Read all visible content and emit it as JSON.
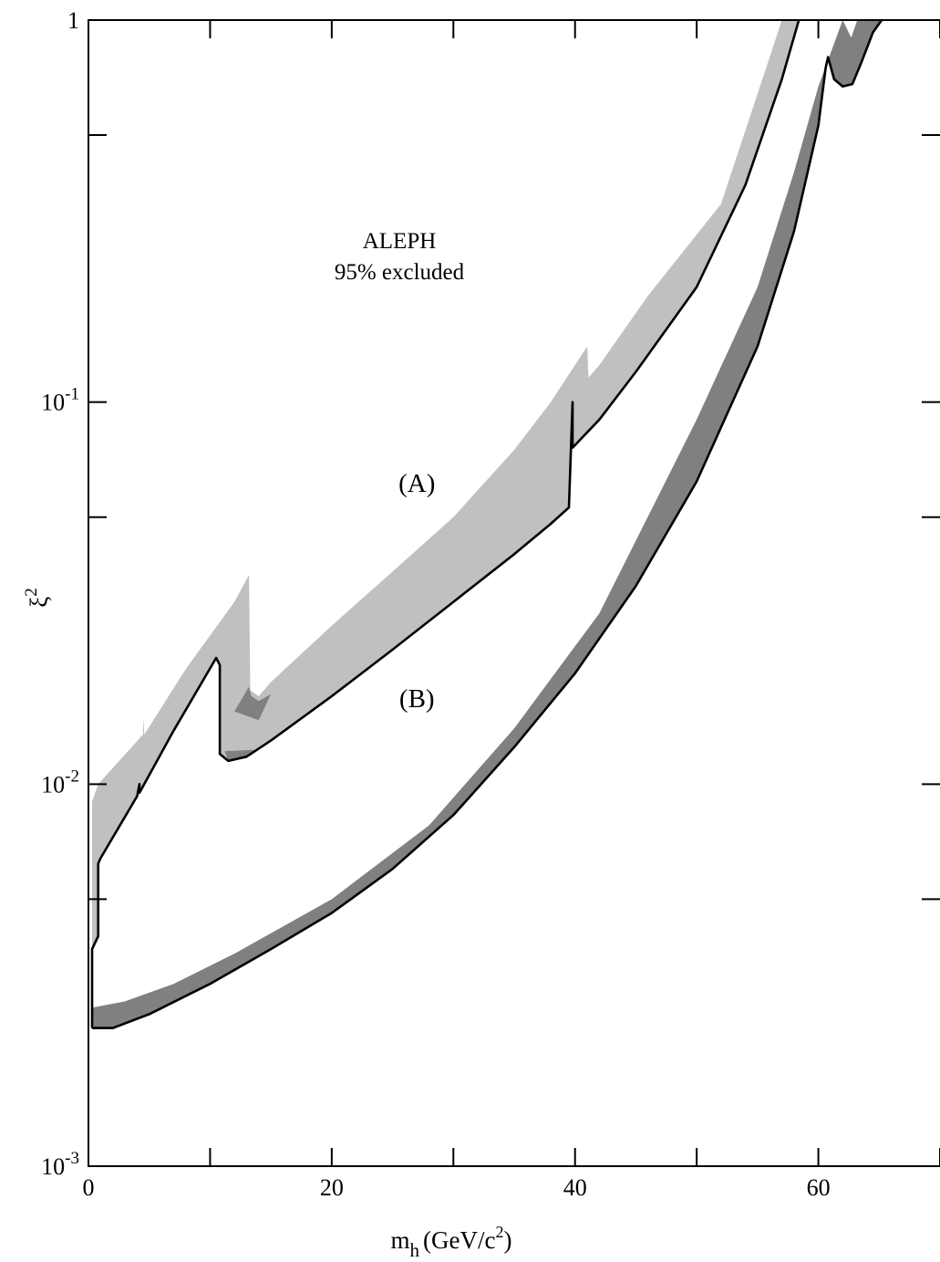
{
  "chart_data": {
    "type": "area",
    "title": "",
    "annotation_lines": [
      "ALEPH",
      "95% excluded"
    ],
    "xlabel": {
      "main": "m",
      "sub": "h",
      "rest": "(GeV/c",
      "sup": "2",
      "close": ")"
    },
    "ylabel": {
      "main": "ξ",
      "sup": "2"
    },
    "xlim": [
      0,
      70
    ],
    "ylim": [
      0.001,
      1
    ],
    "yscale": "log",
    "grid": false,
    "x_ticks": [
      {
        "value": 0,
        "label": "0"
      },
      {
        "value": 20,
        "label": "20"
      },
      {
        "value": 40,
        "label": "40"
      },
      {
        "value": 60,
        "label": "60"
      }
    ],
    "x_minor_ticks": [
      10,
      30,
      50,
      70
    ],
    "y_ticks": [
      {
        "value": 1,
        "base": "1",
        "exp": ""
      },
      {
        "value": 0.1,
        "base": "10",
        "exp": "-1"
      },
      {
        "value": 0.01,
        "base": "10",
        "exp": "-2"
      },
      {
        "value": 0.001,
        "base": "10",
        "exp": "-3"
      }
    ],
    "y_minor_ticks": [
      0.5,
      0.05,
      0.005
    ],
    "colors": {
      "band_A": "#c0c0c0",
      "band_B": "#808080",
      "line": "#000000",
      "axis": "#000000"
    },
    "series": [
      {
        "label": "(A)",
        "label_pos": [
          27,
          0.0615
        ],
        "band_color": "#c0c0c0",
        "boundary": [
          [
            0.3,
            0.0023
          ],
          [
            0.3,
            0.0037
          ],
          [
            0.8,
            0.004
          ],
          [
            0.8,
            0.0042
          ],
          [
            0.8,
            0.0062
          ],
          [
            1,
            0.0064
          ],
          [
            4,
            0.0093
          ],
          [
            4.2,
            0.01
          ],
          [
            4.2,
            0.0095
          ],
          [
            7,
            0.0138
          ],
          [
            10.5,
            0.0214
          ],
          [
            10.8,
            0.0205
          ],
          [
            10.8,
            0.012
          ],
          [
            11.5,
            0.0115
          ],
          [
            13,
            0.0118
          ],
          [
            15,
            0.013
          ],
          [
            20,
            0.017
          ],
          [
            25,
            0.0225
          ],
          [
            30,
            0.03
          ],
          [
            35,
            0.04
          ],
          [
            38,
            0.048
          ],
          [
            39.5,
            0.053
          ],
          [
            39.8,
            0.1
          ],
          [
            39.8,
            0.076
          ],
          [
            42,
            0.09
          ],
          [
            45,
            0.12
          ],
          [
            50,
            0.2
          ],
          [
            54,
            0.37
          ],
          [
            57,
            0.7
          ],
          [
            58.4,
            1.0
          ]
        ],
        "band_top": [
          [
            0.3,
            0.0023
          ],
          [
            0.3,
            0.009
          ],
          [
            0.8,
            0.01
          ],
          [
            4.5,
            0.0135
          ],
          [
            4.5,
            0.015
          ],
          [
            4.6,
            0.0135
          ],
          [
            8,
            0.02
          ],
          [
            12,
            0.03
          ],
          [
            13.2,
            0.0353
          ],
          [
            13.3,
            0.0176
          ],
          [
            14,
            0.017
          ],
          [
            15,
            0.0185
          ],
          [
            20,
            0.026
          ],
          [
            25,
            0.036
          ],
          [
            30,
            0.05
          ],
          [
            35,
            0.075
          ],
          [
            38,
            0.1
          ],
          [
            41,
            0.14
          ],
          [
            41.1,
            0.116
          ],
          [
            42,
            0.125
          ],
          [
            46,
            0.19
          ],
          [
            52,
            0.33
          ],
          [
            56,
            0.8
          ],
          [
            57,
            1.0
          ]
        ],
        "inner_patches": [
          [
            [
              12,
              0.0155
            ],
            [
              13.2,
              0.018
            ],
            [
              13.4,
              0.017
            ],
            [
              14,
              0.0165
            ],
            [
              15,
              0.0172
            ],
            [
              14,
              0.0147
            ]
          ],
          [
            [
              11.2,
              0.0122
            ],
            [
              13.6,
              0.0123
            ],
            [
              13.0,
              0.0117
            ],
            [
              11.5,
              0.0115
            ]
          ]
        ]
      },
      {
        "label": "(B)",
        "label_pos": [
          27,
          0.0168
        ],
        "band_color": "#808080",
        "band_top": [
          [
            0.3,
            0.0026
          ],
          [
            3,
            0.0027
          ],
          [
            7,
            0.003
          ],
          [
            12,
            0.0036
          ],
          [
            20,
            0.005
          ],
          [
            28,
            0.0078
          ],
          [
            35,
            0.014
          ],
          [
            42,
            0.028
          ],
          [
            50,
            0.09
          ],
          [
            55,
            0.2
          ],
          [
            58,
            0.4
          ],
          [
            60,
            0.67
          ],
          [
            62,
            1.0
          ],
          [
            62.7,
            0.9
          ],
          [
            63.2,
            1.0
          ]
        ],
        "boundary": [
          [
            0.3,
            0.0023
          ],
          [
            2,
            0.0023
          ],
          [
            5,
            0.0025
          ],
          [
            10,
            0.003
          ],
          [
            15,
            0.0037
          ],
          [
            20,
            0.0046
          ],
          [
            25,
            0.006
          ],
          [
            30,
            0.0083
          ],
          [
            35,
            0.0125
          ],
          [
            40,
            0.0195
          ],
          [
            45,
            0.033
          ],
          [
            50,
            0.062
          ],
          [
            55,
            0.14
          ],
          [
            58,
            0.28
          ],
          [
            60,
            0.53
          ],
          [
            60.6,
            0.75
          ],
          [
            60.8,
            0.8
          ],
          [
            61.3,
            0.7
          ],
          [
            62,
            0.67
          ],
          [
            62.8,
            0.68
          ],
          [
            63.5,
            0.77
          ],
          [
            64.5,
            0.93
          ],
          [
            65.2,
            1.0
          ]
        ]
      }
    ]
  }
}
